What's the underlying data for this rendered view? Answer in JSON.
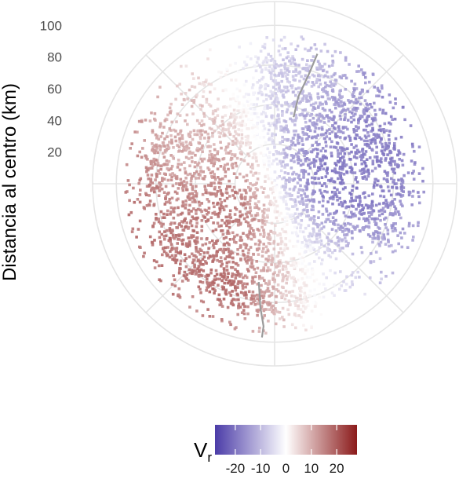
{
  "chart_data": {
    "type": "polar-scatter",
    "title": "",
    "radial_axis": {
      "label": "Distancia al centro (km)",
      "range": [
        0,
        115
      ],
      "ticks": [
        20,
        40,
        60,
        80,
        100
      ],
      "tick_labels": [
        "20",
        "40",
        "60",
        "80",
        "100"
      ],
      "gridlines": [
        25,
        50,
        75,
        100
      ]
    },
    "angular_gridlines_deg": [
      0,
      45,
      90,
      135,
      180,
      225,
      270,
      315
    ],
    "field": {
      "name": "radial-velocity",
      "description_blobs": [
        {
          "azimuth_deg": 100,
          "distance_km": 50,
          "value": -22
        },
        {
          "azimuth_deg": 70,
          "distance_km": 40,
          "value": -18
        },
        {
          "azimuth_deg": 20,
          "distance_km": 70,
          "value": -8
        },
        {
          "azimuth_deg": 250,
          "distance_km": 50,
          "value": 14
        },
        {
          "azimuth_deg": 200,
          "distance_km": 75,
          "value": 25
        },
        {
          "azimuth_deg": 290,
          "distance_km": 60,
          "value": 6
        }
      ],
      "coverage": "approx. 0–95 km, sparse beyond 80 km"
    },
    "coastlines": [
      {
        "name": "coast-north",
        "points_km": [
          [
            27,
            82
          ],
          [
            22,
            70
          ],
          [
            15,
            55
          ],
          [
            12,
            42
          ]
        ]
      },
      {
        "name": "coast-south",
        "points_km": [
          [
            -10,
            -62
          ],
          [
            -9,
            -78
          ],
          [
            -7,
            -90
          ],
          [
            -8,
            -97
          ]
        ]
      }
    ],
    "colorbar": {
      "title_main": "V",
      "title_sub": "r",
      "range": [
        -28,
        28
      ],
      "colors": {
        "low": "#4b3ca8",
        "mid": "#ffffff",
        "high": "#8b1a1a"
      },
      "ticks": [
        -20,
        -10,
        0,
        10,
        20
      ],
      "tick_labels": [
        "-20",
        "-10",
        "0",
        "10",
        "20"
      ]
    }
  }
}
